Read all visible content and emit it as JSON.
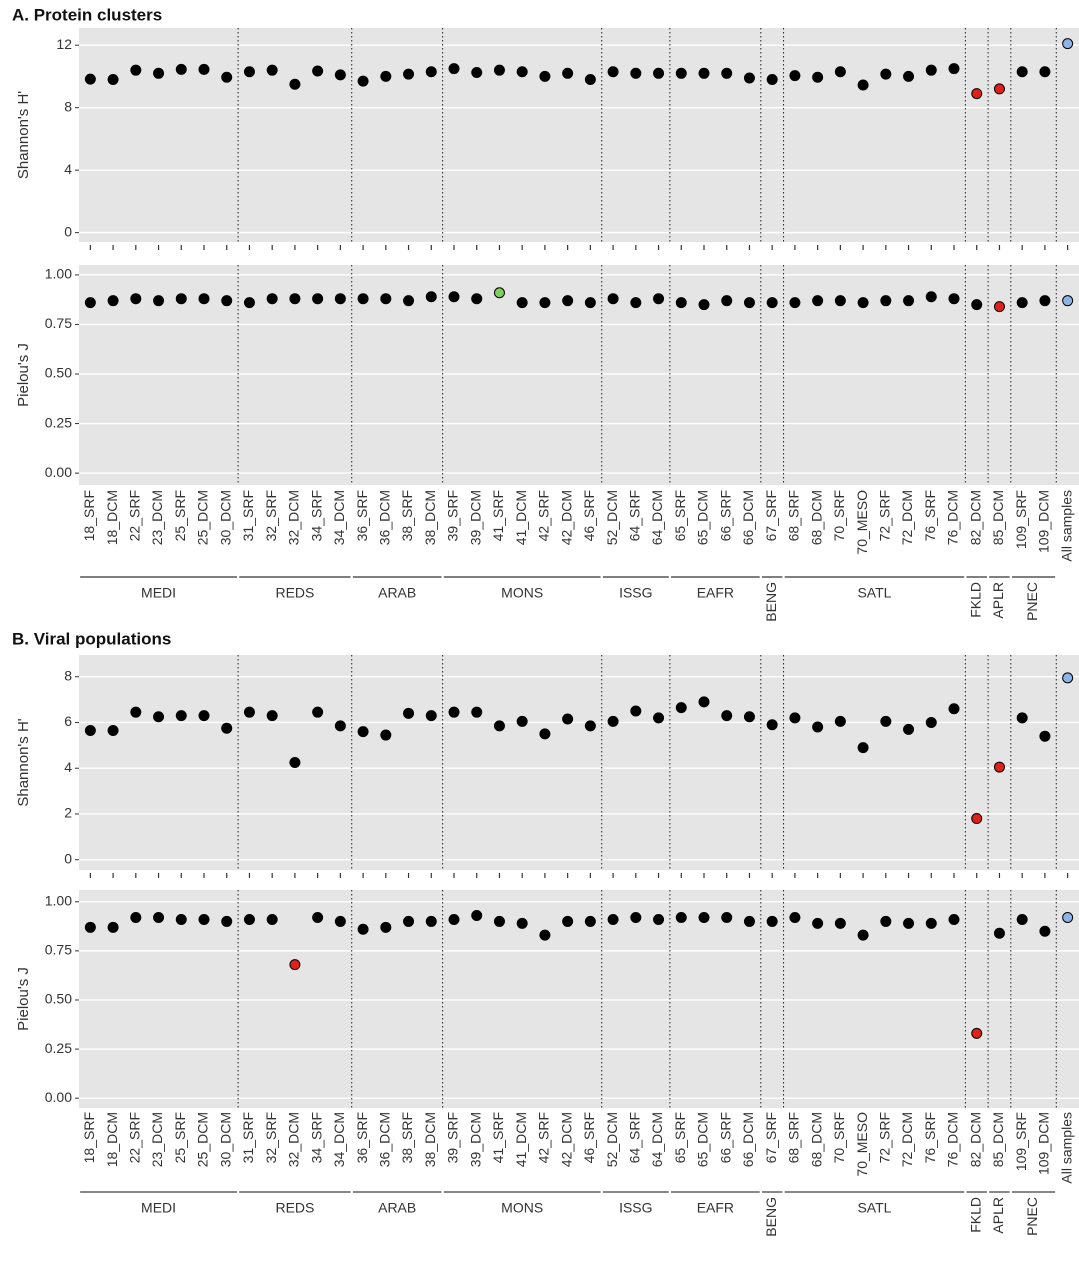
{
  "chart_data": [
    {
      "type": "dot",
      "title": "A. Protein clusters",
      "groups": [
        {
          "name": "MEDI",
          "categories": [
            "18_SRF",
            "18_DCM",
            "22_SRF",
            "23_DCM",
            "25_SRF",
            "25_DCM",
            "30_DCM"
          ]
        },
        {
          "name": "REDS",
          "categories": [
            "31_SRF",
            "32_SRF",
            "32_DCM",
            "34_SRF",
            "34_DCM"
          ]
        },
        {
          "name": "ARAB",
          "categories": [
            "36_SRF",
            "36_DCM",
            "38_SRF",
            "38_DCM"
          ]
        },
        {
          "name": "MONS",
          "categories": [
            "39_SRF",
            "39_DCM",
            "41_SRF",
            "41_DCM",
            "42_SRF",
            "42_DCM",
            "46_SRF"
          ]
        },
        {
          "name": "ISSG",
          "categories": [
            "52_DCM",
            "64_SRF",
            "64_DCM"
          ]
        },
        {
          "name": "EAFR",
          "categories": [
            "65_SRF",
            "65_DCM",
            "66_SRF",
            "66_DCM"
          ]
        },
        {
          "name": "BENG",
          "categories": [
            "67_SRF"
          ]
        },
        {
          "name": "SATL",
          "categories": [
            "68_SRF",
            "68_DCM",
            "70_SRF",
            "70_MESO",
            "72_SRF",
            "72_DCM",
            "76_SRF",
            "76_DCM"
          ]
        },
        {
          "name": "FKLD",
          "categories": [
            "82_DCM"
          ]
        },
        {
          "name": "APLR",
          "categories": [
            "85_DCM"
          ]
        },
        {
          "name": "PNEC",
          "categories": [
            "109_SRF",
            "109_DCM"
          ]
        },
        {
          "categories": [
            "All samples"
          ]
        }
      ],
      "panels": [
        {
          "ylabel": "Shannon's H'",
          "ylim": [
            -0.6,
            13.1
          ],
          "yticks": [
            0,
            4,
            8,
            12
          ],
          "grid": true,
          "values": [
            9.83,
            9.8,
            10.4,
            10.2,
            10.45,
            10.45,
            9.95,
            10.3,
            10.4,
            9.5,
            10.35,
            10.1,
            9.7,
            10.0,
            10.15,
            10.3,
            10.5,
            10.25,
            10.4,
            10.3,
            10.0,
            10.2,
            9.8,
            10.3,
            10.2,
            10.2,
            10.2,
            10.2,
            10.2,
            9.9,
            9.8,
            10.05,
            9.95,
            10.3,
            9.45,
            10.15,
            10.0,
            10.4,
            10.5,
            8.9,
            9.2,
            10.3,
            10.3,
            12.1
          ],
          "colors": [
            "#000000",
            "#000000",
            "#000000",
            "#000000",
            "#000000",
            "#000000",
            "#000000",
            "#000000",
            "#000000",
            "#000000",
            "#000000",
            "#000000",
            "#000000",
            "#000000",
            "#000000",
            "#000000",
            "#000000",
            "#000000",
            "#000000",
            "#000000",
            "#000000",
            "#000000",
            "#000000",
            "#000000",
            "#000000",
            "#000000",
            "#000000",
            "#000000",
            "#000000",
            "#000000",
            "#000000",
            "#000000",
            "#000000",
            "#000000",
            "#000000",
            "#000000",
            "#000000",
            "#000000",
            "#000000",
            "#e0201b",
            "#e0201b",
            "#000000",
            "#000000",
            "#8fb3e8"
          ]
        },
        {
          "ylabel": "Pielou's J",
          "ylim": [
            -0.06,
            1.05
          ],
          "yticks": [
            {
              "value": 0,
              "label": "0.00"
            },
            0.25,
            {
              "value": 0.5,
              "label": "0.50"
            },
            0.75,
            {
              "value": 1,
              "label": "1.00"
            }
          ],
          "grid": true,
          "values": [
            0.86,
            0.87,
            0.88,
            0.87,
            0.88,
            0.88,
            0.87,
            0.86,
            0.88,
            0.88,
            0.88,
            0.88,
            0.88,
            0.88,
            0.87,
            0.89,
            0.89,
            0.88,
            0.91,
            0.86,
            0.86,
            0.87,
            0.86,
            0.88,
            0.86,
            0.88,
            0.86,
            0.85,
            0.87,
            0.86,
            0.86,
            0.86,
            0.87,
            0.87,
            0.86,
            0.87,
            0.87,
            0.89,
            0.88,
            0.85,
            0.84,
            0.86,
            0.87,
            0.87
          ],
          "colors": [
            "#000000",
            "#000000",
            "#000000",
            "#000000",
            "#000000",
            "#000000",
            "#000000",
            "#000000",
            "#000000",
            "#000000",
            "#000000",
            "#000000",
            "#000000",
            "#000000",
            "#000000",
            "#000000",
            "#000000",
            "#000000",
            "#7fcf5f",
            "#000000",
            "#000000",
            "#000000",
            "#000000",
            "#000000",
            "#000000",
            "#000000",
            "#000000",
            "#000000",
            "#000000",
            "#000000",
            "#000000",
            "#000000",
            "#000000",
            "#000000",
            "#000000",
            "#000000",
            "#000000",
            "#000000",
            "#000000",
            "#000000",
            "#e0201b",
            "#000000",
            "#000000",
            "#8fb3e8"
          ]
        }
      ]
    },
    {
      "type": "dot",
      "title": "B. Viral populations",
      "groups": [
        {
          "name": "MEDI",
          "categories": [
            "18_SRF",
            "18_DCM",
            "22_SRF",
            "23_DCM",
            "25_SRF",
            "25_DCM",
            "30_DCM"
          ]
        },
        {
          "name": "REDS",
          "categories": [
            "31_SRF",
            "32_SRF",
            "32_DCM",
            "34_SRF",
            "34_DCM"
          ]
        },
        {
          "name": "ARAB",
          "categories": [
            "36_SRF",
            "36_DCM",
            "38_SRF",
            "38_DCM"
          ]
        },
        {
          "name": "MONS",
          "categories": [
            "39_SRF",
            "39_DCM",
            "41_SRF",
            "41_DCM",
            "42_SRF",
            "42_DCM",
            "46_SRF"
          ]
        },
        {
          "name": "ISSG",
          "categories": [
            "52_DCM",
            "64_SRF",
            "64_DCM"
          ]
        },
        {
          "name": "EAFR",
          "categories": [
            "65_SRF",
            "65_DCM",
            "66_SRF",
            "66_DCM"
          ]
        },
        {
          "name": "BENG",
          "categories": [
            "67_SRF"
          ]
        },
        {
          "name": "SATL",
          "categories": [
            "68_SRF",
            "68_DCM",
            "70_SRF",
            "70_MESO",
            "72_SRF",
            "72_DCM",
            "76_SRF",
            "76_DCM"
          ]
        },
        {
          "name": "FKLD",
          "categories": [
            "82_DCM"
          ]
        },
        {
          "name": "APLR",
          "categories": [
            "85_DCM"
          ]
        },
        {
          "name": "PNEC",
          "categories": [
            "109_SRF",
            "109_DCM"
          ]
        },
        {
          "categories": [
            "All samples"
          ]
        }
      ],
      "panels": [
        {
          "ylabel": "Shannon's H'",
          "ylim": [
            -0.45,
            8.95
          ],
          "yticks": [
            0,
            2,
            4,
            6,
            8
          ],
          "grid": true,
          "values": [
            5.65,
            5.65,
            6.45,
            6.25,
            6.3,
            6.3,
            5.75,
            6.45,
            6.3,
            4.25,
            6.45,
            5.85,
            5.6,
            5.45,
            6.4,
            6.3,
            6.45,
            6.45,
            5.85,
            6.05,
            5.5,
            6.15,
            5.85,
            6.05,
            6.5,
            6.2,
            6.65,
            6.9,
            6.3,
            6.25,
            5.9,
            6.2,
            5.8,
            6.05,
            4.9,
            6.05,
            5.7,
            6.0,
            6.6,
            1.8,
            4.05,
            6.2,
            5.4,
            7.95
          ],
          "colors": [
            "#000000",
            "#000000",
            "#000000",
            "#000000",
            "#000000",
            "#000000",
            "#000000",
            "#000000",
            "#000000",
            "#000000",
            "#000000",
            "#000000",
            "#000000",
            "#000000",
            "#000000",
            "#000000",
            "#000000",
            "#000000",
            "#000000",
            "#000000",
            "#000000",
            "#000000",
            "#000000",
            "#000000",
            "#000000",
            "#000000",
            "#000000",
            "#000000",
            "#000000",
            "#000000",
            "#000000",
            "#000000",
            "#000000",
            "#000000",
            "#000000",
            "#000000",
            "#000000",
            "#000000",
            "#000000",
            "#e0201b",
            "#e0201b",
            "#000000",
            "#000000",
            "#8fb3e8"
          ]
        },
        {
          "ylabel": "Pielou's J",
          "ylim": [
            -0.05,
            1.06
          ],
          "yticks": [
            {
              "value": 0,
              "label": "0.00"
            },
            0.25,
            {
              "value": 0.5,
              "label": "0.50"
            },
            0.75,
            {
              "value": 1,
              "label": "1.00"
            }
          ],
          "grid": true,
          "values": [
            0.87,
            0.87,
            0.92,
            0.92,
            0.91,
            0.91,
            0.9,
            0.91,
            0.91,
            0.68,
            0.92,
            0.9,
            0.86,
            0.87,
            0.9,
            0.9,
            0.91,
            0.93,
            0.9,
            0.89,
            0.83,
            0.9,
            0.9,
            0.91,
            0.92,
            0.91,
            0.92,
            0.92,
            0.92,
            0.9,
            0.9,
            0.92,
            0.89,
            0.89,
            0.83,
            0.9,
            0.89,
            0.89,
            0.91,
            0.33,
            0.84,
            0.91,
            0.85,
            0.92
          ],
          "colors": [
            "#000000",
            "#000000",
            "#000000",
            "#000000",
            "#000000",
            "#000000",
            "#000000",
            "#000000",
            "#000000",
            "#e0201b",
            "#000000",
            "#000000",
            "#000000",
            "#000000",
            "#000000",
            "#000000",
            "#000000",
            "#000000",
            "#000000",
            "#000000",
            "#000000",
            "#000000",
            "#000000",
            "#000000",
            "#000000",
            "#000000",
            "#000000",
            "#000000",
            "#000000",
            "#000000",
            "#000000",
            "#000000",
            "#000000",
            "#000000",
            "#000000",
            "#000000",
            "#000000",
            "#000000",
            "#000000",
            "#e0201b",
            "#000000",
            "#000000",
            "#000000",
            "#8fb3e8"
          ]
        }
      ]
    }
  ]
}
